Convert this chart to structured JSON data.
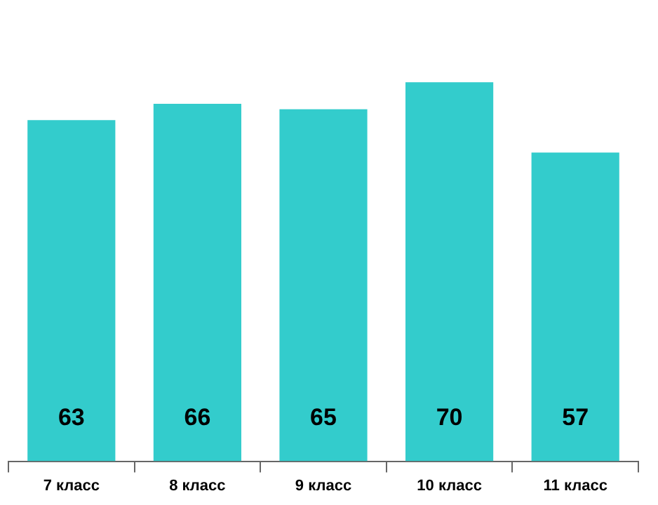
{
  "chart_data": {
    "type": "bar",
    "categories": [
      "7 класс",
      "8 класс",
      "9 класс",
      "10 класс",
      "11 класс"
    ],
    "values": [
      63,
      66,
      65,
      70,
      57
    ],
    "color": "#33cccc",
    "data_labels": true,
    "grid": false,
    "legend": false
  }
}
